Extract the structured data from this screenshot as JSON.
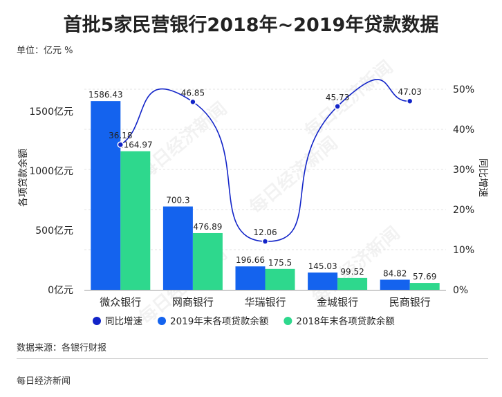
{
  "title": "首批5家民营银行2018年~2019年贷款数据",
  "unit": "单位：亿元 %",
  "source": "数据来源：各银行财报",
  "publisher": "每日经济新闻",
  "watermark": "每日经济新闻",
  "chart_data": {
    "type": "bar",
    "categories": [
      "微众银行",
      "网商银行",
      "华瑞银行",
      "金城银行",
      "民商银行"
    ],
    "series": [
      {
        "name": "2019年末各项贷款余额",
        "type": "bar",
        "axis": "left",
        "color": "#1463ee",
        "values": [
          1586.43,
          700.3,
          196.66,
          145.03,
          84.82
        ]
      },
      {
        "name": "2018年末各项贷款余额",
        "type": "bar",
        "axis": "left",
        "color": "#2ed88d",
        "values": [
          1164.97,
          476.89,
          175.5,
          99.52,
          57.69
        ]
      },
      {
        "name": "同比增速",
        "type": "line",
        "axis": "right",
        "color": "#1224c8",
        "values": [
          36.18,
          46.85,
          12.06,
          45.73,
          47.03
        ]
      }
    ],
    "y_left": {
      "label": "各项贷款余额",
      "min": 0,
      "max": 1700,
      "ticks": [
        0,
        500,
        1000,
        1500
      ],
      "tick_labels": [
        "0亿元",
        "500亿元",
        "1000亿元",
        "1500亿元"
      ]
    },
    "y_right": {
      "label": "同比增速",
      "min": 0,
      "max": 50,
      "ticks": [
        0,
        10,
        20,
        30,
        40,
        50
      ],
      "tick_labels": [
        "0%",
        "10%",
        "20%",
        "30%",
        "40%",
        "50%"
      ]
    },
    "legend": {
      "placement": "bottom",
      "order": [
        "同比增速",
        "2019年末各项贷款余额",
        "2018年末各项贷款余额"
      ]
    },
    "grid": true
  }
}
